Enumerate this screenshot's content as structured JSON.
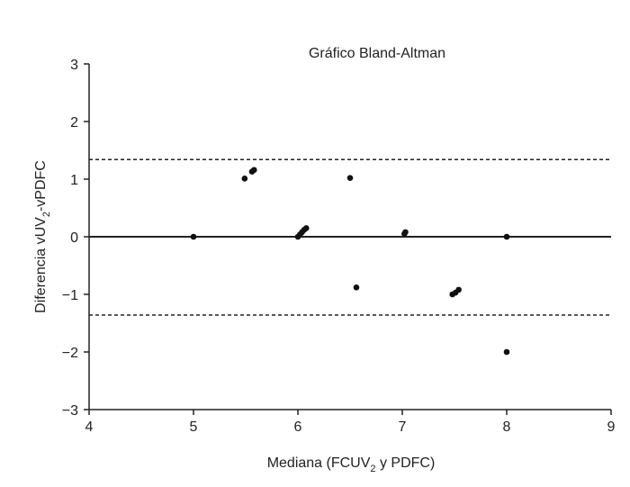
{
  "chart_data": {
    "type": "scatter",
    "title": "Gráfico Bland-Altman",
    "xlabel": {
      "main": "Mediana (FCUV",
      "sub": "2",
      "rest": " y PDFC)"
    },
    "ylabel": {
      "main": "Diferencia vUV",
      "sub": "2",
      "rest": "-vPDFC"
    },
    "xlim": [
      4,
      9
    ],
    "ylim": [
      -3,
      3
    ],
    "xticks": [
      4,
      5,
      6,
      7,
      8,
      9
    ],
    "yticks": [
      3,
      2,
      1,
      0,
      -1,
      -2,
      -3
    ],
    "ytick_labels": [
      "3",
      "2",
      "1",
      "0",
      "−1",
      "−2",
      "−3"
    ],
    "grid": false,
    "reference_lines": [
      {
        "y": 0,
        "style": "solid"
      },
      {
        "y": 1.34,
        "style": "dashed"
      },
      {
        "y": -1.36,
        "style": "dashed"
      }
    ],
    "points": [
      {
        "x": 5.0,
        "y": 0.0
      },
      {
        "x": 5.49,
        "y": 1.01
      },
      {
        "x": 5.56,
        "y": 1.13
      },
      {
        "x": 5.58,
        "y": 1.16
      },
      {
        "x": 6.0,
        "y": 0.0
      },
      {
        "x": 6.02,
        "y": 0.04
      },
      {
        "x": 6.04,
        "y": 0.08
      },
      {
        "x": 6.06,
        "y": 0.12
      },
      {
        "x": 6.08,
        "y": 0.15
      },
      {
        "x": 6.5,
        "y": 1.02
      },
      {
        "x": 6.56,
        "y": -0.88
      },
      {
        "x": 7.02,
        "y": 0.05
      },
      {
        "x": 7.03,
        "y": 0.08
      },
      {
        "x": 7.48,
        "y": -1.0
      },
      {
        "x": 7.51,
        "y": -0.97
      },
      {
        "x": 7.54,
        "y": -0.92
      },
      {
        "x": 8.0,
        "y": 0.0
      },
      {
        "x": 8.0,
        "y": -2.0
      }
    ],
    "colors": {
      "points": "#111111",
      "axes": "#222222"
    }
  }
}
